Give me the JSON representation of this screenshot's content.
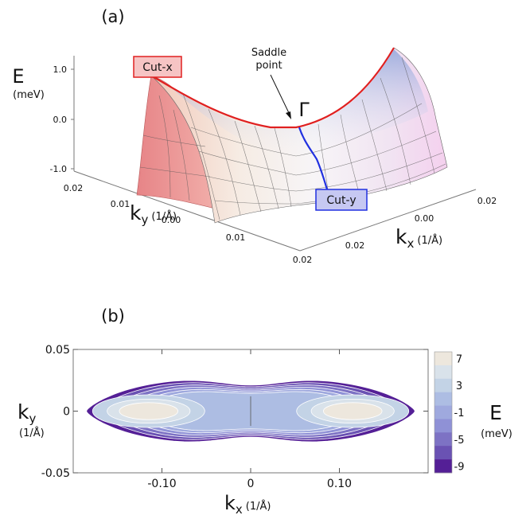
{
  "panel_a": {
    "label": "(a)",
    "e_symbol": "E",
    "e_unit": "(meV)",
    "e_ticks": [
      "1.0",
      "0.0",
      "-1.0"
    ],
    "ky_symbol": "k",
    "ky_sub": "y",
    "ky_unit": "(1/Å)",
    "kx_symbol": "k",
    "kx_sub": "x",
    "kx_unit": "(1/Å)",
    "ky_ticks": [
      "0.02",
      "0.01",
      "0.00",
      "0.01",
      "0.02"
    ],
    "kx_ticks": [
      "0.02",
      "0.00",
      "0.02",
      "0.02"
    ],
    "cut_x_label": "Cut-x",
    "cut_y_label": "Cut-y",
    "saddle_line1": "Saddle",
    "saddle_line2": "point",
    "gamma_label": "Γ",
    "colors": {
      "cut_x": "#e02020",
      "cut_y": "#2030e0",
      "cut_x_fill": "#f6c4c4",
      "cut_y_fill": "#c6c8f2"
    }
  },
  "chart_data": {
    "type": "heatmap",
    "label": "(b)",
    "x_ticks": [
      "-0.10",
      "0",
      "0.10"
    ],
    "x_tick_values": [
      -0.1,
      0,
      0.1
    ],
    "y_ticks": [
      "0.05",
      "0",
      "-0.05"
    ],
    "y_tick_values": [
      0.05,
      0,
      -0.05
    ],
    "xlim": [
      -0.2,
      0.2
    ],
    "ylim": [
      -0.05,
      0.05
    ],
    "x_symbol": "k",
    "x_sub": "x",
    "x_unit": "(1/Å)",
    "y_symbol": "k",
    "y_sub": "y",
    "y_unit": "(1/Å)",
    "colorbar": {
      "title": "E",
      "unit": "(meV)",
      "tick_labels": [
        "7",
        "3",
        "-1",
        "-5",
        "-9"
      ],
      "tick_values": [
        7,
        3,
        -1,
        -5,
        -9
      ],
      "levels": [
        7,
        5,
        3,
        1,
        -1,
        -3,
        -5,
        -7,
        -9
      ],
      "colors": [
        "#ede7dd",
        "#d9e2ea",
        "#c3d3e6",
        "#adbde3",
        "#9fa9de",
        "#8f91d6",
        "#7d72c4",
        "#6a52b3",
        "#541f96"
      ]
    }
  }
}
